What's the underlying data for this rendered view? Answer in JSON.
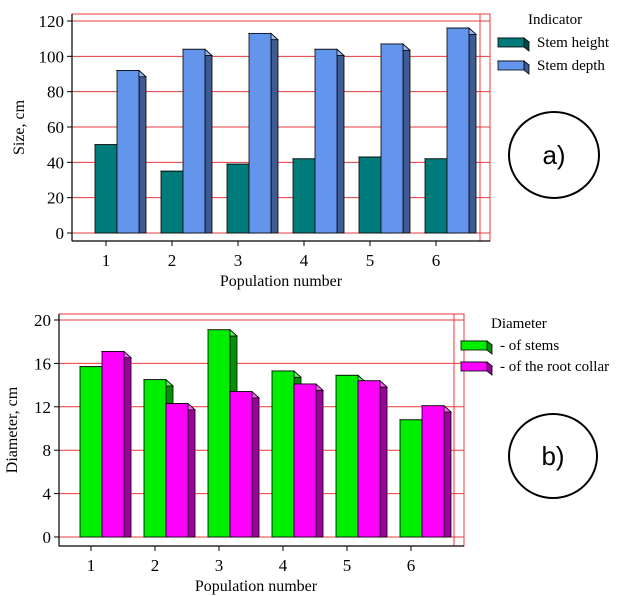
{
  "chart_data": [
    {
      "type": "bar",
      "categories": [
        "1",
        "2",
        "3",
        "4",
        "5",
        "6"
      ],
      "series": [
        {
          "name": "Stem height",
          "values": [
            50,
            35,
            39,
            42,
            43,
            42
          ],
          "color": "#007b7b"
        },
        {
          "name": "Stem depth",
          "values": [
            92,
            104,
            113,
            104,
            107,
            116
          ],
          "color": "#6495ed"
        }
      ],
      "legend_title": "Indicator",
      "xlabel": "Population number",
      "ylabel": "Size, cm",
      "ylim": [
        0,
        120
      ],
      "yticks": [
        0,
        20,
        40,
        60,
        80,
        100,
        120
      ],
      "grid": true,
      "grid_color": "#e8383d",
      "legend_position": "top-right",
      "badge": "a)"
    },
    {
      "type": "bar",
      "categories": [
        "1",
        "2",
        "3",
        "4",
        "5",
        "6"
      ],
      "series": [
        {
          "name": "- of stems",
          "values": [
            15.7,
            14.5,
            19.1,
            15.3,
            14.9,
            10.8
          ],
          "color": "#00ee00"
        },
        {
          "name": "- of the root collar",
          "values": [
            17.1,
            12.3,
            13.4,
            14.1,
            14.4,
            12.1
          ],
          "color": "#ff00ff"
        }
      ],
      "legend_title": "Diameter",
      "xlabel": "Population number",
      "ylabel": "Diameter, cm",
      "ylim": [
        0,
        20
      ],
      "yticks": [
        0,
        4,
        8,
        12,
        16,
        20
      ],
      "grid": true,
      "grid_color": "#e8383d",
      "legend_position": "top-right",
      "badge": "b)"
    }
  ]
}
